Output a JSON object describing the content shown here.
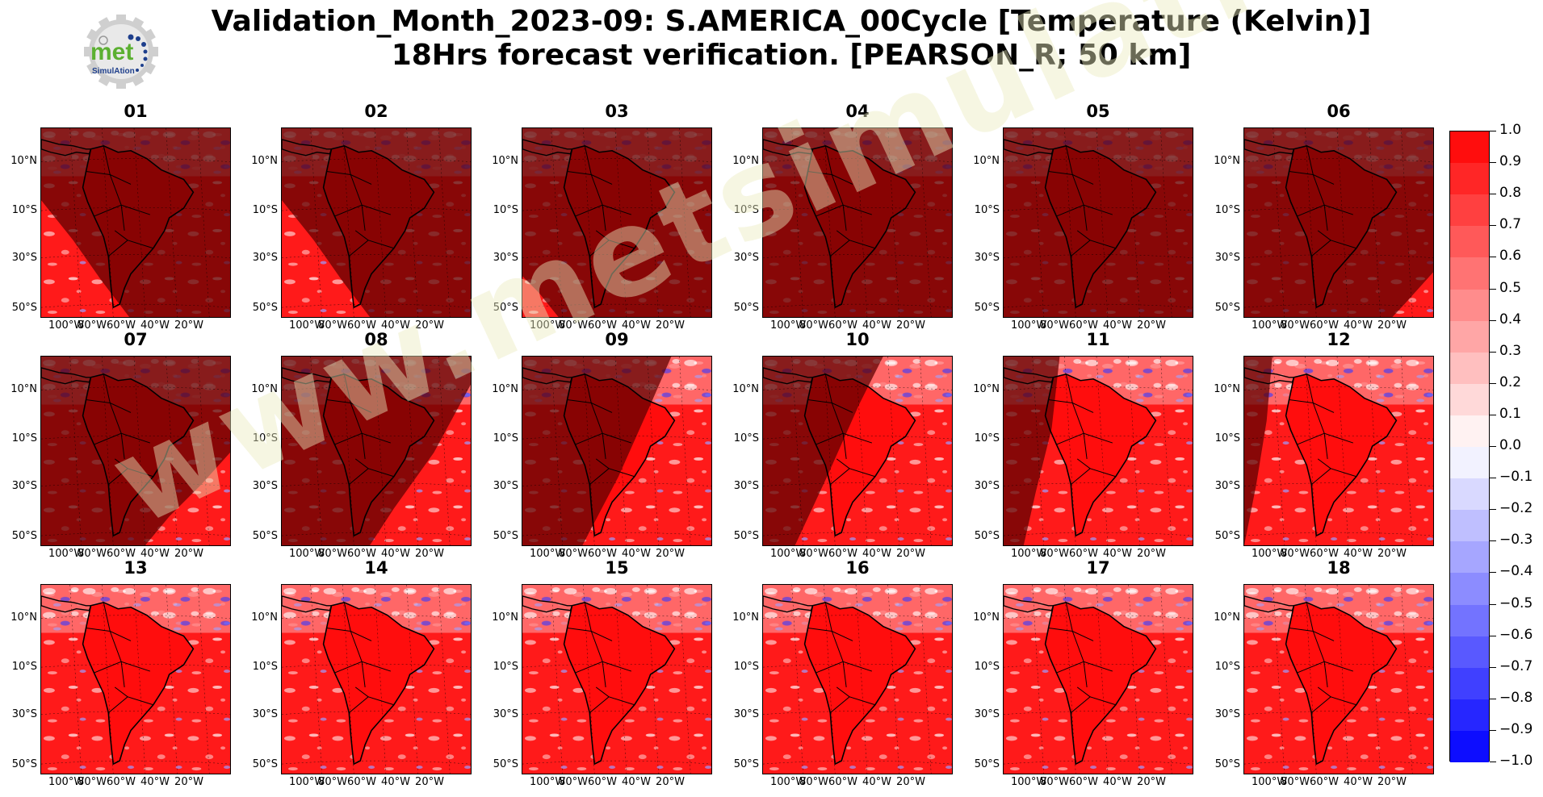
{
  "title_line1": "Validation_Month_2023-09: S.AMERICA_00Cycle [Temperature (Kelvin)]",
  "title_line2": "18Hrs forecast verification.  [PEARSON_R; 50 km]",
  "logo": {
    "text_main": "met",
    "text_sub": "SimulAtion",
    "colors": {
      "green": "#5bb031",
      "blue": "#1e3f8c",
      "gear": "#cfcfcf"
    }
  },
  "watermark": "www.metsimulation.com",
  "panels": [
    {
      "label": "01",
      "shade": "day-left"
    },
    {
      "label": "02",
      "shade": "day-left"
    },
    {
      "label": "03",
      "shade": "day-left-small"
    },
    {
      "label": "04",
      "shade": "full"
    },
    {
      "label": "05",
      "shade": "full"
    },
    {
      "label": "06",
      "shade": "day-right-small"
    },
    {
      "label": "07",
      "shade": "day-right"
    },
    {
      "label": "08",
      "shade": "day-right-large"
    },
    {
      "label": "09",
      "shade": "day-right-xl"
    },
    {
      "label": "10",
      "shade": "night-left"
    },
    {
      "label": "11",
      "shade": "night-left-small"
    },
    {
      "label": "12",
      "shade": "night-left-xs"
    },
    {
      "label": "13",
      "shade": "none"
    },
    {
      "label": "14",
      "shade": "none"
    },
    {
      "label": "15",
      "shade": "none"
    },
    {
      "label": "16",
      "shade": "none"
    },
    {
      "label": "17",
      "shade": "none"
    },
    {
      "label": "18",
      "shade": "none"
    }
  ],
  "lat_labels": [
    "10°N",
    "10°S",
    "30°S",
    "50°S"
  ],
  "lon_labels": [
    "100°W",
    "80°W",
    "60°W",
    "40°W",
    "20°W"
  ],
  "colorbar": {
    "min": -1.0,
    "max": 1.0,
    "step": 0.1,
    "tick_labels": [
      "1.0",
      "0.9",
      "0.8",
      "0.7",
      "0.6",
      "0.5",
      "0.4",
      "0.3",
      "0.2",
      "0.1",
      "0.0",
      "−0.1",
      "−0.2",
      "−0.3",
      "−0.4",
      "−0.5",
      "−0.6",
      "−0.7",
      "−0.8",
      "−0.9",
      "−1.0"
    ],
    "colors": {
      "high": "#ff0000",
      "mid": "#ffffff",
      "low": "#0000ff"
    }
  },
  "chart_data": {
    "type": "heatmap",
    "title": "Validation_Month_2023-09: S.AMERICA_00Cycle [Temperature (Kelvin)] 18Hrs forecast verification.  [PEARSON_R; 50 km]",
    "metric": "PEARSON_R",
    "value_range": [
      -1.0,
      1.0
    ],
    "panels": [
      "01",
      "02",
      "03",
      "04",
      "05",
      "06",
      "07",
      "08",
      "09",
      "10",
      "11",
      "12",
      "13",
      "14",
      "15",
      "16",
      "17",
      "18"
    ],
    "lat_ticks": [
      "10°N",
      "10°S",
      "30°S",
      "50°S"
    ],
    "lon_ticks": [
      "100°W",
      "80°W",
      "60°W",
      "40°W",
      "20°W"
    ],
    "grid": true,
    "legend": "colorbar-right"
  }
}
